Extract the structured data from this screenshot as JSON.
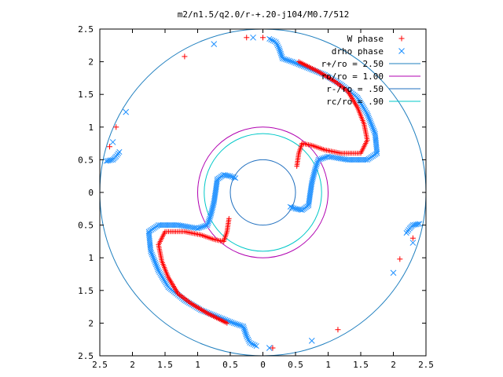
{
  "chart_data": {
    "type": "scatter",
    "title": "m2/n1.5/q2.0/r-+.20-j104/M0.7/512",
    "xlim": [
      -2.5,
      2.5
    ],
    "ylim": [
      -2.5,
      2.5
    ],
    "x_tick_labels": [
      "2.5",
      "2",
      "1.5",
      "1",
      "0.5",
      "0",
      "0.5",
      "1",
      "1.5",
      "2",
      "2.5"
    ],
    "y_tick_labels": [
      "2.5",
      "2",
      "1.5",
      "1",
      "0.5",
      "0",
      "0.5",
      "1",
      "1.5",
      "2",
      "2.5"
    ],
    "tick_values": [
      -2.5,
      -2,
      -1.5,
      -1,
      -0.5,
      0,
      0.5,
      1,
      1.5,
      2,
      2.5
    ],
    "legend_position": "top-right",
    "grid": false,
    "series": [
      {
        "name": "W phase",
        "marker": "+",
        "color": "#ff0000",
        "points": [
          [
            -1.2,
            2.08
          ],
          [
            -2.25,
            1.0
          ],
          [
            -2.35,
            0.7
          ],
          [
            -0.25,
            2.37
          ],
          [
            0.0,
            2.37
          ],
          [
            0.15,
            -2.38
          ],
          [
            1.15,
            -2.1
          ],
          [
            2.1,
            -1.02
          ],
          [
            2.3,
            -0.7
          ]
        ]
      },
      {
        "name": "drho phase",
        "marker": "x",
        "color": "#1e90ff",
        "points": [
          [
            -0.75,
            2.27
          ],
          [
            -2.1,
            1.23
          ],
          [
            -2.3,
            0.77
          ],
          [
            -0.15,
            2.37
          ],
          [
            0.1,
            -2.38
          ],
          [
            0.75,
            -2.27
          ],
          [
            2.0,
            -1.23
          ],
          [
            2.3,
            -0.77
          ]
        ]
      }
    ],
    "arms": [
      {
        "series": "drho phase",
        "points": [
          [
            0.1,
            2.35
          ],
          [
            0.2,
            2.3
          ],
          [
            0.25,
            2.2
          ],
          [
            0.3,
            2.05
          ],
          [
            0.45,
            2.0
          ],
          [
            0.7,
            1.9
          ],
          [
            0.95,
            1.8
          ],
          [
            1.2,
            1.65
          ],
          [
            1.45,
            1.45
          ],
          [
            1.6,
            1.2
          ],
          [
            1.72,
            0.9
          ],
          [
            1.75,
            0.6
          ],
          [
            1.6,
            0.5
          ],
          [
            1.3,
            0.5
          ],
          [
            1.0,
            0.55
          ],
          [
            0.85,
            0.5
          ],
          [
            0.8,
            0.35
          ],
          [
            0.75,
            0.15
          ],
          [
            0.72,
            -0.05
          ],
          [
            0.7,
            -0.2
          ],
          [
            0.6,
            -0.27
          ],
          [
            0.5,
            -0.25
          ],
          [
            0.42,
            -0.22
          ]
        ]
      },
      {
        "series": "W phase",
        "points": [
          [
            0.55,
            2.0
          ],
          [
            0.85,
            1.85
          ],
          [
            1.1,
            1.7
          ],
          [
            1.3,
            1.55
          ],
          [
            1.45,
            1.3
          ],
          [
            1.55,
            1.05
          ],
          [
            1.6,
            0.8
          ],
          [
            1.5,
            0.6
          ],
          [
            1.2,
            0.6
          ],
          [
            0.95,
            0.65
          ],
          [
            0.75,
            0.72
          ],
          [
            0.6,
            0.75
          ],
          [
            0.55,
            0.6
          ],
          [
            0.52,
            0.4
          ]
        ]
      },
      {
        "series": "drho phase",
        "points": [
          [
            -0.1,
            -2.35
          ],
          [
            -0.2,
            -2.3
          ],
          [
            -0.25,
            -2.2
          ],
          [
            -0.3,
            -2.05
          ],
          [
            -0.45,
            -2.0
          ],
          [
            -0.7,
            -1.9
          ],
          [
            -0.95,
            -1.8
          ],
          [
            -1.2,
            -1.65
          ],
          [
            -1.45,
            -1.45
          ],
          [
            -1.6,
            -1.2
          ],
          [
            -1.72,
            -0.9
          ],
          [
            -1.75,
            -0.6
          ],
          [
            -1.6,
            -0.5
          ],
          [
            -1.3,
            -0.5
          ],
          [
            -1.0,
            -0.55
          ],
          [
            -0.85,
            -0.5
          ],
          [
            -0.8,
            -0.35
          ],
          [
            -0.75,
            -0.15
          ],
          [
            -0.72,
            0.05
          ],
          [
            -0.7,
            0.2
          ],
          [
            -0.6,
            0.27
          ],
          [
            -0.5,
            0.25
          ],
          [
            -0.42,
            0.22
          ]
        ]
      },
      {
        "series": "W phase",
        "points": [
          [
            -0.55,
            -2.0
          ],
          [
            -0.85,
            -1.85
          ],
          [
            -1.1,
            -1.7
          ],
          [
            -1.3,
            -1.55
          ],
          [
            -1.45,
            -1.3
          ],
          [
            -1.55,
            -1.05
          ],
          [
            -1.6,
            -0.8
          ],
          [
            -1.5,
            -0.6
          ],
          [
            -1.2,
            -0.6
          ],
          [
            -0.95,
            -0.65
          ],
          [
            -0.75,
            -0.72
          ],
          [
            -0.6,
            -0.75
          ],
          [
            -0.55,
            -0.6
          ],
          [
            -0.52,
            -0.4
          ]
        ]
      },
      {
        "series": "drho phase",
        "points": [
          [
            -2.4,
            0.48
          ],
          [
            -2.3,
            0.5
          ],
          [
            -2.25,
            0.55
          ],
          [
            -2.2,
            0.62
          ]
        ]
      },
      {
        "series": "drho phase",
        "points": [
          [
            2.4,
            -0.48
          ],
          [
            2.3,
            -0.5
          ],
          [
            2.25,
            -0.55
          ],
          [
            2.2,
            -0.62
          ]
        ]
      }
    ],
    "circles": [
      {
        "name": "r+/ro = 2.50",
        "radius": 2.5,
        "color": "#1f7fbf"
      },
      {
        "name": "ro/ro = 1.00",
        "radius": 1.0,
        "color": "#b000b0"
      },
      {
        "name": "r-/ro = .50",
        "radius": 0.5,
        "color": "#1f6fbf"
      },
      {
        "name": "rc/ro = .90",
        "radius": 0.9,
        "color": "#00c8c8"
      }
    ]
  }
}
